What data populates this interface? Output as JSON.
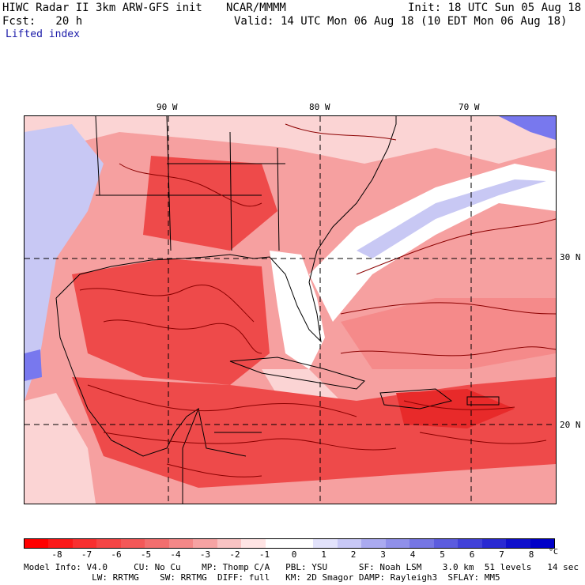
{
  "header": {
    "model_line": "HIWC Radar II 3km ARW-GFS init",
    "center": "NCAR/MMMM",
    "init": "Init: 18 UTC Sun 05 Aug 18",
    "fcst": "Fcst:   20 h",
    "valid": "Valid: 14 UTC Mon 06 Aug 18 (10 EDT Mon 06 Aug 18)",
    "field": "Lifted index"
  },
  "map": {
    "lon_labels": [
      "90 W",
      "80 W",
      "70 W"
    ],
    "lat_labels": [
      "30 N",
      "20 N"
    ],
    "colors": {
      "background": "#f6a0a0",
      "strong_red": "#ee4a4a",
      "deep_red": "#e82a2a",
      "light_pink": "#fbd4d4",
      "white": "#ffffff",
      "light_blue": "#c8c8f4",
      "blue": "#7878ee",
      "contour": "#8b0000",
      "coast": "#000000"
    }
  },
  "colorbar": {
    "labels": [
      "-8",
      "-7",
      "-6",
      "-5",
      "-4",
      "-3",
      "-2",
      "-1",
      "0",
      "1",
      "2",
      "3",
      "4",
      "5",
      "6",
      "7",
      "8"
    ],
    "unit": "°C",
    "colors": [
      "#ff0000",
      "#fb1818",
      "#f83030",
      "#f54545",
      "#f35858",
      "#f26e6e",
      "#f48888",
      "#f6a3a3",
      "#f9c3c3",
      "#ffe4e4",
      "#ffffff",
      "#ffffff",
      "#e2e2fb",
      "#c8c8f6",
      "#aaaaf0",
      "#9090ea",
      "#7676e4",
      "#5c5cde",
      "#4242d8",
      "#2a2ad2",
      "#1010cc",
      "#0000c8"
    ]
  },
  "footer": {
    "line1": "Model Info: V4.0     CU: No Cu    MP: Thomp C/A   PBL: YSU      SF: Noah LSM    3.0 km  51 levels   14 sec",
    "line2": "             LW: RRTMG    SW: RRTMG  DIFF: full   KM: 2D Smagor DAMP: Rayleigh3  SFLAY: MM5"
  }
}
